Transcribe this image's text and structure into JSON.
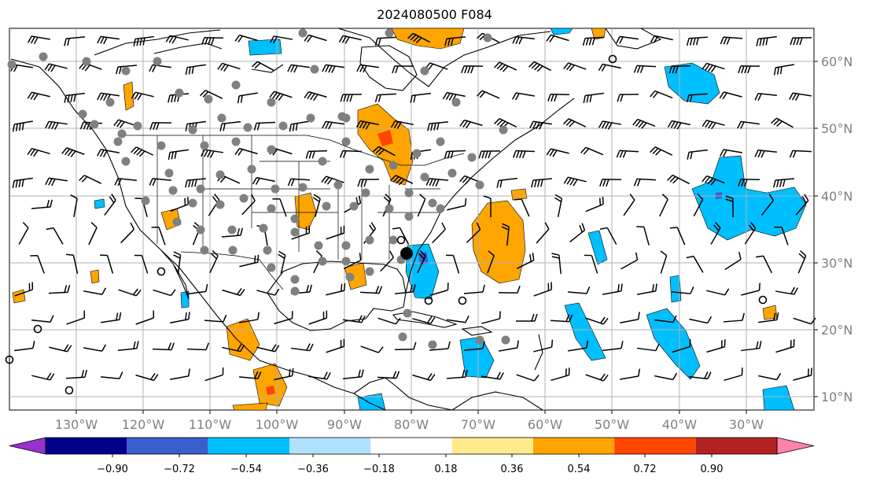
{
  "title": "2024080500 F084",
  "lon_labels": [
    "130°W",
    "120°W",
    "110°W",
    "100°W",
    "90°W",
    "80°W",
    "70°W",
    "60°W",
    "50°W",
    "40°W",
    "30°W"
  ],
  "lat_labels": [
    "60°N",
    "50°N",
    "40°N",
    "30°N",
    "20°N",
    "10°N"
  ],
  "colorbar": {
    "colors": [
      "#9932cc",
      "#00008b",
      "#3a5fcd",
      "#00bfff",
      "#b0e2ff",
      "#ffffff",
      "#ffeb8c",
      "#ffa500",
      "#ff4500",
      "#b22222",
      "#ff82ab"
    ],
    "ticks": [
      "−0.90",
      "−0.72",
      "−0.54",
      "−0.36",
      "−0.18",
      "0.18",
      "0.36",
      "0.54",
      "0.72",
      "0.90"
    ]
  }
}
